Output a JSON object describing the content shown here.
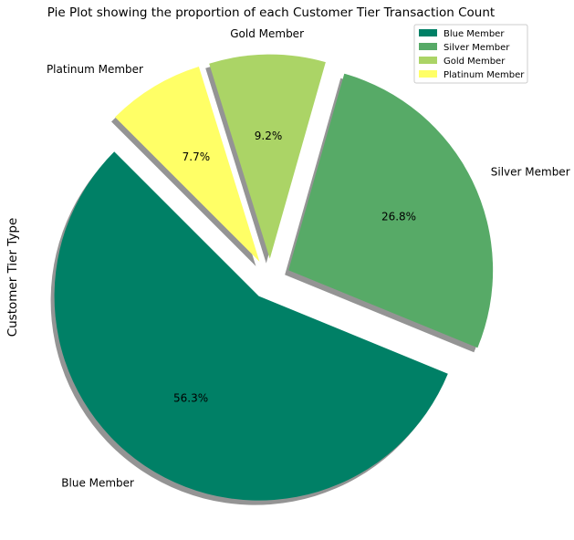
{
  "chart_data": {
    "type": "pie",
    "title": "Pie Plot showing the proportion of each Customer Tier Transaction Count",
    "ylabel": "Customer Tier Type",
    "categories": [
      "Blue Member",
      "Silver Member",
      "Gold Member",
      "Platinum Member"
    ],
    "values": [
      56.3,
      26.8,
      9.2,
      7.7
    ],
    "value_labels": [
      "56.3%",
      "26.8%",
      "9.2%",
      "7.7%"
    ],
    "colors": [
      "#008066",
      "#57aa67",
      "#abd466",
      "#ffff66"
    ],
    "exploded": true,
    "shadow": true,
    "start_angle_deg": 135,
    "direction": "counterclockwise",
    "legend": {
      "position": "top-right",
      "entries": [
        "Blue Member",
        "Silver Member",
        "Gold Member",
        "Platinum Member"
      ]
    }
  }
}
